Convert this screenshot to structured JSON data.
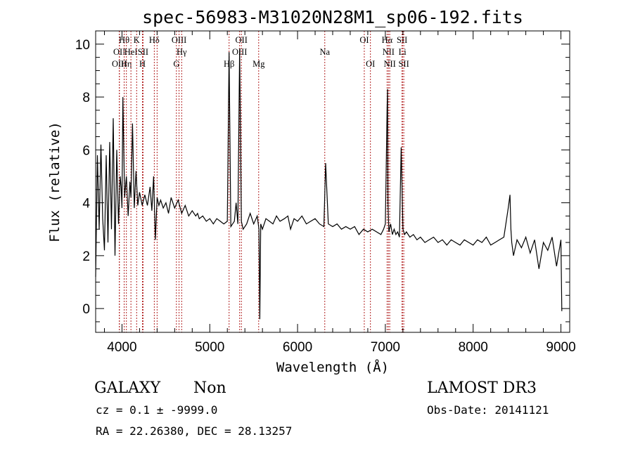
{
  "chart_data": {
    "type": "line",
    "title": "spec-56983-M31020N28M1_sp06-192.fits",
    "xlabel": "Wavelength (Å)",
    "ylabel": "Flux (relative)",
    "xlim": [
      3700,
      9100
    ],
    "ylim": [
      -0.9,
      10.5
    ],
    "xticks": [
      4000,
      5000,
      6000,
      7000,
      8000,
      9000
    ],
    "yticks": [
      0,
      2,
      4,
      6,
      8,
      10
    ],
    "grid": false,
    "series": [
      {
        "color": "#000000",
        "x": [
          3700,
          3720,
          3740,
          3760,
          3780,
          3800,
          3820,
          3840,
          3860,
          3880,
          3900,
          3920,
          3940,
          3960,
          3980,
          3990,
          4000,
          4010,
          4030,
          4050,
          4070,
          4090,
          4102,
          4120,
          4140,
          4160,
          4180,
          4200,
          4230,
          4260,
          4290,
          4320,
          4340,
          4360,
          4380,
          4400,
          4420,
          4440,
          4470,
          4500,
          4530,
          4560,
          4600,
          4640,
          4680,
          4720,
          4760,
          4800,
          4840,
          4861,
          4880,
          4920,
          4960,
          5000,
          5040,
          5080,
          5120,
          5160,
          5200,
          5220,
          5240,
          5260,
          5280,
          5300,
          5320,
          5340,
          5360,
          5380,
          5420,
          5460,
          5500,
          5540,
          5560,
          5570,
          5580,
          5600,
          5640,
          5680,
          5720,
          5760,
          5800,
          5850,
          5890,
          5920,
          5960,
          6000,
          6050,
          6100,
          6150,
          6200,
          6250,
          6300,
          6320,
          6350,
          6400,
          6450,
          6500,
          6550,
          6600,
          6650,
          6700,
          6750,
          6800,
          6850,
          6900,
          6950,
          6980,
          7000,
          7020,
          7025,
          7030,
          7040,
          7060,
          7080,
          7100,
          7120,
          7140,
          7160,
          7180,
          7200,
          7220,
          7240,
          7280,
          7320,
          7360,
          7400,
          7450,
          7500,
          7550,
          7600,
          7650,
          7700,
          7750,
          7800,
          7850,
          7900,
          7950,
          8000,
          8050,
          8100,
          8150,
          8200,
          8250,
          8300,
          8350,
          8400,
          8420,
          8430,
          8440,
          8460,
          8500,
          8550,
          8600,
          8650,
          8700,
          8750,
          8800,
          8850,
          8900,
          8950,
          9000,
          9010
        ],
        "y": [
          1.2,
          5.8,
          3.0,
          6.2,
          3.4,
          2.2,
          5.8,
          2.5,
          6.3,
          3.0,
          7.2,
          2.0,
          6.0,
          3.2,
          5.0,
          4.6,
          3.8,
          8.0,
          4.2,
          5.0,
          3.5,
          4.8,
          4.2,
          7.0,
          3.8,
          5.2,
          3.9,
          4.4,
          3.9,
          4.3,
          3.9,
          4.6,
          3.7,
          5.0,
          2.6,
          4.2,
          3.9,
          4.1,
          3.8,
          4.0,
          3.6,
          4.2,
          3.8,
          4.1,
          3.6,
          3.9,
          3.5,
          3.7,
          3.5,
          3.6,
          3.4,
          3.5,
          3.3,
          3.4,
          3.2,
          3.4,
          3.3,
          3.2,
          3.3,
          9.7,
          3.1,
          3.2,
          3.3,
          4.0,
          3.2,
          9.8,
          3.3,
          3.0,
          3.2,
          3.6,
          3.2,
          3.5,
          3.0,
          -0.4,
          3.2,
          3.0,
          3.4,
          3.3,
          3.2,
          3.5,
          3.3,
          3.4,
          3.5,
          3.0,
          3.4,
          3.3,
          3.5,
          3.2,
          3.3,
          3.4,
          3.2,
          3.1,
          5.5,
          3.2,
          3.1,
          3.2,
          3.0,
          3.1,
          3.0,
          3.1,
          2.8,
          3.0,
          2.9,
          3.0,
          2.9,
          2.8,
          3.0,
          3.2,
          7.6,
          8.3,
          4.0,
          2.9,
          3.2,
          2.8,
          3.0,
          2.8,
          2.9,
          2.7,
          6.1,
          3.0,
          2.8,
          2.9,
          2.7,
          2.8,
          2.6,
          2.7,
          2.5,
          2.6,
          2.7,
          2.5,
          2.6,
          2.4,
          2.6,
          2.5,
          2.4,
          2.6,
          2.5,
          2.4,
          2.6,
          2.5,
          2.7,
          2.4,
          2.5,
          2.6,
          2.7,
          3.8,
          4.3,
          3.0,
          2.5,
          2.0,
          2.6,
          2.3,
          2.7,
          2.1,
          2.6,
          1.5,
          2.5,
          2.2,
          2.7,
          1.6,
          2.6,
          -0.1
        ]
      }
    ],
    "lines": [
      {
        "x": 3970,
        "label": "OII",
        "row": 1,
        "color": "#b22222"
      },
      {
        "x": 3970,
        "label": "OIII",
        "row": 2,
        "color": "#b22222"
      },
      {
        "x": 4025,
        "label": "Hθ",
        "row": 0,
        "color": "#b22222"
      },
      {
        "x": 4050,
        "label": "Hη",
        "row": 2,
        "color": "#b22222"
      },
      {
        "x": 4102,
        "label": "HeI",
        "row": 1,
        "color": "#b22222"
      },
      {
        "x": 4167,
        "label": "K",
        "row": 0,
        "color": "#b22222"
      },
      {
        "x": 4233,
        "label": "H",
        "row": 2,
        "color": "#b22222"
      },
      {
        "x": 4240,
        "label": "SII",
        "row": 1,
        "color": "#b22222"
      },
      {
        "x": 4368,
        "label": "Hδ",
        "row": 0,
        "color": "#b22222"
      },
      {
        "x": 4400,
        "label": "",
        "row": 0,
        "color": "#b22222"
      },
      {
        "x": 4620,
        "label": "G",
        "row": 2,
        "color": "#b22222"
      },
      {
        "x": 4650,
        "label": "OIII",
        "row": 0,
        "color": "#b22222"
      },
      {
        "x": 4680,
        "label": "Hγ",
        "row": 1,
        "color": "#b22222"
      },
      {
        "x": 5220,
        "label": "Hβ",
        "row": 2,
        "color": "#b22222"
      },
      {
        "x": 5340,
        "label": "OIII",
        "row": 1,
        "color": "#b22222"
      },
      {
        "x": 5360,
        "label": "OII",
        "row": 0,
        "color": "#b22222"
      },
      {
        "x": 5557,
        "label": "Mg",
        "row": 2,
        "color": "#b22222"
      },
      {
        "x": 6310,
        "label": "Na",
        "row": 1,
        "color": "#b22222"
      },
      {
        "x": 6760,
        "label": "OI",
        "row": 0,
        "color": "#b22222"
      },
      {
        "x": 6830,
        "label": "OI",
        "row": 2,
        "color": "#b22222"
      },
      {
        "x": 7020,
        "label": "Hα",
        "row": 0,
        "color": "#b22222"
      },
      {
        "x": 7035,
        "label": "NII",
        "row": 1,
        "color": "#b22222"
      },
      {
        "x": 7050,
        "label": "NII",
        "row": 2,
        "color": "#b22222"
      },
      {
        "x": 7190,
        "label": "SII",
        "row": 0,
        "color": "#b22222"
      },
      {
        "x": 7195,
        "label": "Li",
        "row": 1,
        "color": "#b22222"
      },
      {
        "x": 7210,
        "label": "SII",
        "row": 2,
        "color": "#b22222"
      }
    ]
  },
  "info": {
    "class": "GALAXY",
    "subclass": "Non",
    "survey": "LAMOST DR3",
    "cz": "cz = 0.1 ± -9999.0",
    "obs_date": "Obs-Date: 20141121",
    "coords": "RA =  22.26380, DEC =  28.13257"
  }
}
